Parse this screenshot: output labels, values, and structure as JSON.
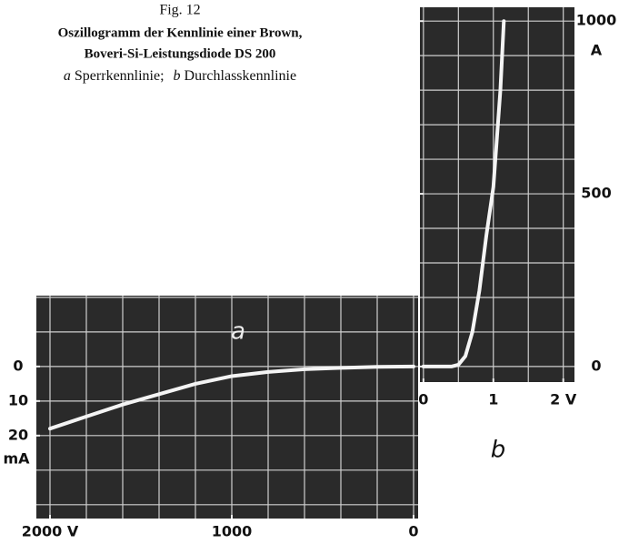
{
  "caption": {
    "figure": "Fig. 12",
    "title": [
      "Oszillogramm der Kennlinie einer Brown,",
      "Boveri-Si-Leistungsdiode DS 200"
    ],
    "legend": [
      {
        "key": "a",
        "text": "Sperrkennlinie;"
      },
      {
        "key": "b",
        "text": "Durchlasskennlinie"
      }
    ]
  },
  "chart_data": [
    {
      "type": "line",
      "annotation": "a",
      "ylabel": "mA",
      "x": [
        2000,
        1800,
        1600,
        1400,
        1200,
        1000,
        800,
        600,
        400,
        200,
        0
      ],
      "values": [
        18,
        14.5,
        11,
        8,
        5,
        2.8,
        1.6,
        0.8,
        0.4,
        0.1,
        0
      ],
      "color": "#f4f4f4",
      "xlim": [
        2075,
        -25
      ],
      "ylim": [
        44,
        -20.5
      ],
      "xticks": [
        {
          "value": 2000,
          "label": "2000 V"
        },
        1000,
        0
      ],
      "yticks": [
        0,
        10,
        20
      ],
      "xgrid": [
        2000,
        1800,
        1600,
        1400,
        1200,
        1000,
        800,
        600,
        400,
        200,
        0
      ],
      "ygrid": [
        -20,
        -10,
        0,
        10,
        20,
        30,
        40
      ]
    },
    {
      "type": "line",
      "annotation": "b",
      "ylabel": "A",
      "x": [
        0,
        0.2,
        0.4,
        0.5,
        0.6,
        0.7,
        0.8,
        0.9,
        1.0,
        1.1,
        1.15
      ],
      "values": [
        0,
        0,
        0,
        5,
        30,
        100,
        220,
        380,
        520,
        800,
        1000
      ],
      "color": "#f4f4f4",
      "xlim": [
        -0.05,
        2.16
      ],
      "ylim": [
        -45,
        1040
      ],
      "xticks": [
        0,
        1,
        {
          "value": 2,
          "label": "2 V"
        }
      ],
      "yticks": [
        0,
        500,
        1000
      ],
      "xgrid": [
        0,
        0.5,
        1,
        1.5,
        2
      ],
      "ygrid": [
        0,
        100,
        200,
        300,
        400,
        500,
        600,
        700,
        800,
        900,
        1000
      ]
    }
  ]
}
